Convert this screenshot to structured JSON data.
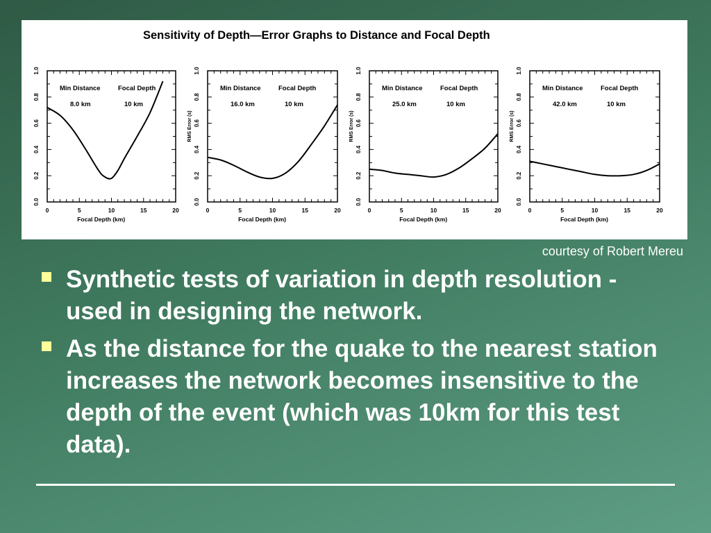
{
  "figure_title": "Sensitivity of Depth—Error Graphs to Distance and Focal Depth",
  "credit": "courtesy of Robert Mereu",
  "bullets": [
    "Synthetic tests of variation in depth resolution - used in designing the network.",
    "As the distance for the quake to the nearest station increases the network becomes insensitive to the depth of the event (which was 10km for this test data)."
  ],
  "colors": {
    "bullet": "#ffff99",
    "background": "#3f7a5e",
    "text": "#ffffff"
  },
  "chart_data": [
    {
      "type": "line",
      "xlabel": "Focal Depth (km)",
      "ylabel": "",
      "xlim": [
        0,
        20
      ],
      "ylim": [
        0.0,
        1.0
      ],
      "xticks": [
        "0",
        "5",
        "10",
        "15",
        "20"
      ],
      "yticks": [
        "0.0",
        "0.2",
        "0.4",
        "0.6",
        "0.8",
        "1.0"
      ],
      "annotation": {
        "header_1": "Min Distance",
        "header_2": "Focal Depth",
        "value_1": "8.0 km",
        "value_2": "10 km"
      },
      "x": [
        0,
        2,
        4,
        6,
        8,
        9,
        10,
        11,
        12,
        14,
        16,
        18
      ],
      "y": [
        0.72,
        0.66,
        0.55,
        0.4,
        0.24,
        0.19,
        0.18,
        0.24,
        0.33,
        0.5,
        0.68,
        0.92
      ]
    },
    {
      "type": "line",
      "xlabel": "Focal Depth (km)",
      "ylabel": "RMS Error (s)",
      "xlim": [
        0,
        20
      ],
      "ylim": [
        0.0,
        1.0
      ],
      "xticks": [
        "0",
        "5",
        "10",
        "15",
        "20"
      ],
      "yticks": [
        "0.0",
        "0.2",
        "0.4",
        "0.6",
        "0.8",
        "1.0"
      ],
      "annotation": {
        "header_1": "Min Distance",
        "header_2": "Focal Depth",
        "value_1": "16.0 km",
        "value_2": "10 km"
      },
      "x": [
        0,
        2,
        4,
        6,
        8,
        10,
        12,
        14,
        16,
        18,
        20
      ],
      "y": [
        0.34,
        0.32,
        0.28,
        0.23,
        0.19,
        0.18,
        0.22,
        0.31,
        0.44,
        0.58,
        0.74
      ]
    },
    {
      "type": "line",
      "xlabel": "Focal Depth (km)",
      "ylabel": "RMS Error (s)",
      "xlim": [
        0,
        20
      ],
      "ylim": [
        0.0,
        1.0
      ],
      "xticks": [
        "0",
        "5",
        "10",
        "15",
        "20"
      ],
      "yticks": [
        "0.0",
        "0.2",
        "0.4",
        "0.6",
        "0.8",
        "1.0"
      ],
      "annotation": {
        "header_1": "Min Distance",
        "header_2": "Focal Depth",
        "value_1": "25.0 km",
        "value_2": "10 km"
      },
      "x": [
        0,
        2,
        4,
        6,
        8,
        10,
        12,
        14,
        16,
        18,
        20
      ],
      "y": [
        0.25,
        0.24,
        0.22,
        0.21,
        0.2,
        0.19,
        0.21,
        0.26,
        0.33,
        0.41,
        0.52
      ]
    },
    {
      "type": "line",
      "xlabel": "Focal Depth (km)",
      "ylabel": "RMS Error (s)",
      "xlim": [
        0,
        20
      ],
      "ylim": [
        0.0,
        1.0
      ],
      "xticks": [
        "0",
        "5",
        "10",
        "15",
        "20"
      ],
      "yticks": [
        "0.0",
        "0.2",
        "0.4",
        "0.6",
        "0.8",
        "1.0"
      ],
      "annotation": {
        "header_1": "Min Distance",
        "header_2": "Focal Depth",
        "value_1": "42.0 km",
        "value_2": "10 km"
      },
      "x": [
        0,
        2,
        4,
        6,
        8,
        10,
        12,
        14,
        16,
        18,
        20
      ],
      "y": [
        0.31,
        0.29,
        0.27,
        0.25,
        0.23,
        0.21,
        0.2,
        0.2,
        0.21,
        0.24,
        0.29
      ]
    }
  ]
}
